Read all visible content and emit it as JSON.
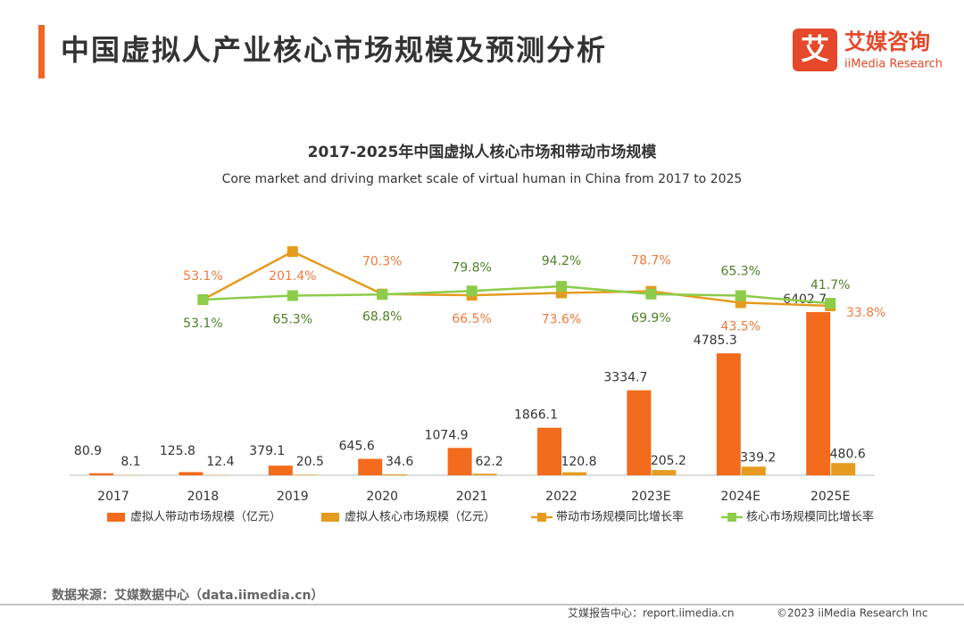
{
  "header": {
    "title": "中国虚拟人产业核心市场规模及预测分析",
    "logo_cn": "艾媒咨询",
    "logo_en": "iiMedia Research",
    "logo_icon": "艾"
  },
  "chart_data": {
    "type": "bar",
    "title": "2017-2025年中国虚拟人核心市场和带动市场规模",
    "subtitle": "Core market and driving market scale of virtual human in China from 2017 to 2025",
    "categories": [
      "2017",
      "2018",
      "2019",
      "2020",
      "2021",
      "2022",
      "2023E",
      "2024E",
      "2025E"
    ],
    "ylim": [
      0,
      9900
    ],
    "y2lim": [
      -490,
      290
    ],
    "legend": "bottom",
    "series": [
      {
        "name": "虚拟人带动市场规模（亿元）",
        "type": "bar",
        "color": "#f36b1c",
        "values": [
          80.9,
          125.8,
          379.1,
          645.6,
          1074.9,
          1866.1,
          3334.7,
          4785.3,
          6402.7
        ]
      },
      {
        "name": "虚拟人核心市场规模（亿元）",
        "type": "bar",
        "color": "#e59b1f",
        "values": [
          8.1,
          12.4,
          20.5,
          34.6,
          62.2,
          120.8,
          205.2,
          339.2,
          480.6
        ]
      },
      {
        "name": "带动市场规模同比增长率",
        "type": "line",
        "axis": "y2",
        "color": "#e59b1f",
        "label_color": "#f07a3c",
        "values": [
          null,
          53.1,
          201.4,
          70.3,
          66.5,
          73.6,
          78.7,
          43.5,
          33.8
        ],
        "value_labels": [
          null,
          "53.1%",
          "201.4%",
          "70.3%",
          "66.5%",
          "73.6%",
          "78.7%",
          "43.5%",
          "33.8%"
        ]
      },
      {
        "name": "核心市场规模同比增长率",
        "type": "line",
        "axis": "y2",
        "color": "#8ccc4a",
        "label_color": "#4f7f25",
        "values": [
          null,
          53.1,
          65.3,
          68.8,
          79.8,
          94.2,
          69.9,
          65.3,
          41.7
        ],
        "value_labels": [
          null,
          "53.1%",
          "65.3%",
          "68.8%",
          "79.8%",
          "94.2%",
          "69.9%",
          "65.3%",
          "41.7%"
        ]
      }
    ]
  },
  "footer": {
    "source": "数据来源：艾媒数据中心（data.iimedia.cn）",
    "report": "艾媒报告中心：report.iimedia.cn",
    "copyright": "©2023  iiMedia Research  Inc"
  }
}
